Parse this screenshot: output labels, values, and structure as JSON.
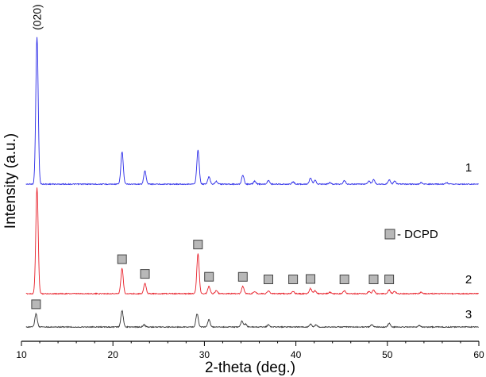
{
  "chart_data": {
    "type": "line",
    "xlabel": "2-theta (deg.)",
    "ylabel": "Intensity (a.u.)",
    "xlim": [
      10,
      60
    ],
    "x_ticks": [
      10,
      20,
      30,
      40,
      50,
      60
    ],
    "y_ticks_shown": false,
    "legend": {
      "marker": "gray-square",
      "label": "- DCPD",
      "placement": "middle-right"
    },
    "peak_annotations": [
      {
        "label": "(020)",
        "x": 11.7
      }
    ],
    "series": [
      {
        "name": "1",
        "color": "#2a2ae8",
        "baseline": 0,
        "peaks": [
          {
            "x": 11.7,
            "y": 100
          },
          {
            "x": 21.0,
            "y": 22
          },
          {
            "x": 23.5,
            "y": 9
          },
          {
            "x": 29.3,
            "y": 23
          },
          {
            "x": 30.5,
            "y": 5
          },
          {
            "x": 31.3,
            "y": 2
          },
          {
            "x": 34.2,
            "y": 6
          },
          {
            "x": 35.5,
            "y": 2
          },
          {
            "x": 37.0,
            "y": 2.5
          },
          {
            "x": 39.7,
            "y": 1.5
          },
          {
            "x": 41.6,
            "y": 4
          },
          {
            "x": 42.1,
            "y": 2.5
          },
          {
            "x": 43.7,
            "y": 1
          },
          {
            "x": 45.3,
            "y": 2.5
          },
          {
            "x": 48.0,
            "y": 2
          },
          {
            "x": 48.5,
            "y": 3
          },
          {
            "x": 50.2,
            "y": 3
          },
          {
            "x": 50.8,
            "y": 2
          },
          {
            "x": 53.7,
            "y": 1
          },
          {
            "x": 56.5,
            "y": 1
          }
        ]
      },
      {
        "name": "2",
        "color": "#e8202a",
        "baseline": 0,
        "peaks": [
          {
            "x": 11.7,
            "y": 72
          },
          {
            "x": 21.0,
            "y": 17
          },
          {
            "x": 23.5,
            "y": 7
          },
          {
            "x": 29.3,
            "y": 27
          },
          {
            "x": 30.5,
            "y": 5
          },
          {
            "x": 31.3,
            "y": 2
          },
          {
            "x": 34.2,
            "y": 5
          },
          {
            "x": 35.5,
            "y": 1.5
          },
          {
            "x": 37.0,
            "y": 2
          },
          {
            "x": 39.7,
            "y": 1.5
          },
          {
            "x": 41.6,
            "y": 3.5
          },
          {
            "x": 42.1,
            "y": 2
          },
          {
            "x": 43.7,
            "y": 1
          },
          {
            "x": 45.3,
            "y": 2
          },
          {
            "x": 48.0,
            "y": 1.5
          },
          {
            "x": 48.5,
            "y": 2.5
          },
          {
            "x": 50.2,
            "y": 2.5
          },
          {
            "x": 50.8,
            "y": 1.5
          },
          {
            "x": 53.7,
            "y": 1
          }
        ]
      },
      {
        "name": "3",
        "color": "#333333",
        "baseline": 0,
        "peaks": [
          {
            "x": 11.6,
            "y": 9
          },
          {
            "x": 21.0,
            "y": 11
          },
          {
            "x": 23.4,
            "y": 1.5
          },
          {
            "x": 29.2,
            "y": 9
          },
          {
            "x": 30.5,
            "y": 5
          },
          {
            "x": 34.1,
            "y": 4
          },
          {
            "x": 34.5,
            "y": 2
          },
          {
            "x": 37.0,
            "y": 1.5
          },
          {
            "x": 41.6,
            "y": 2
          },
          {
            "x": 42.2,
            "y": 1.5
          },
          {
            "x": 48.3,
            "y": 1.5
          },
          {
            "x": 50.2,
            "y": 2.5
          },
          {
            "x": 53.5,
            "y": 1
          }
        ]
      }
    ],
    "dcpd_markers": [
      {
        "series": "2",
        "x": [
          21.0,
          23.5,
          29.3,
          30.5,
          34.2,
          37.0,
          39.7,
          41.6,
          45.3,
          48.5,
          50.2
        ]
      },
      {
        "series": "3",
        "x": [
          11.6
        ]
      }
    ]
  }
}
